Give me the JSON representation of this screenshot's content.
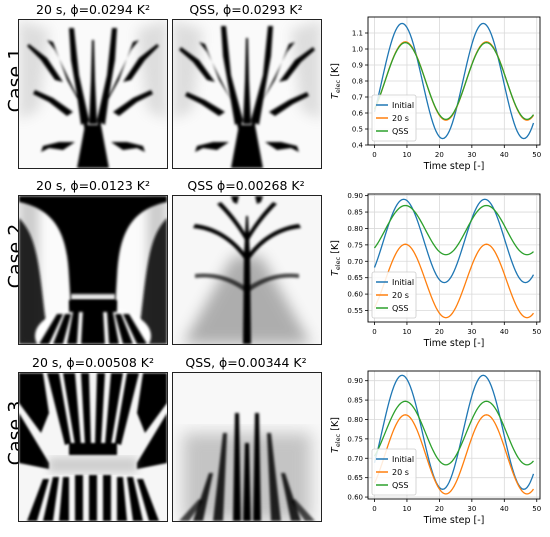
{
  "cases": [
    {
      "label": "Case 1",
      "left_title": "20 s, ϕ=0.0294 K²",
      "right_title": "QSS, ϕ=0.0293 K²"
    },
    {
      "label": "Case 2",
      "left_title": "20 s, ϕ=0.0123 K²",
      "right_title": "QSS ϕ=0.00268 K²"
    },
    {
      "label": "Case 3",
      "left_title": "20 s, ϕ=0.00508 K²",
      "right_title": "QSS, ϕ=0.00344 K²"
    }
  ],
  "chart_data": [
    {
      "type": "line",
      "xlabel": "Time step [-]",
      "ylabel": "T_elec [K]",
      "xlim": [
        -2,
        51
      ],
      "ylim": [
        0.4,
        1.2
      ],
      "xticks": [
        0,
        10,
        20,
        30,
        40,
        50
      ],
      "yticks": [
        0.4,
        0.5,
        0.6,
        0.7,
        0.8,
        0.9,
        1.0,
        1.1
      ],
      "ytick_labels": [
        "0.4",
        "0.5",
        "0.6",
        "0.7",
        "0.8",
        "0.9",
        "1.0",
        "1.1"
      ],
      "grid": true,
      "legend_position": "lower-left",
      "series": [
        {
          "name": "Initial",
          "color": "#1f77b4",
          "mean": 0.8,
          "amp": 0.36,
          "peak": 8.5
        },
        {
          "name": "20 s",
          "color": "#ff7f0e",
          "mean": 0.8,
          "amp": 0.245,
          "peak": 9.5
        },
        {
          "name": "QSS",
          "color": "#2ca02c",
          "mean": 0.8,
          "amp": 0.24,
          "peak": 9.5
        }
      ],
      "x_start": 0,
      "x_end": 49,
      "period": 25
    },
    {
      "type": "line",
      "xlabel": "Time step [-]",
      "ylabel": "T_elec [K]",
      "xlim": [
        -2,
        51
      ],
      "ylim": [
        0.515,
        0.905
      ],
      "xticks": [
        0,
        10,
        20,
        30,
        40,
        50
      ],
      "yticks": [
        0.55,
        0.6,
        0.65,
        0.7,
        0.75,
        0.8,
        0.85,
        0.9
      ],
      "ytick_labels": [
        "0.55",
        "0.60",
        "0.65",
        "0.70",
        "0.75",
        "0.80",
        "0.85",
        "0.90"
      ],
      "grid": true,
      "legend_position": "lower-left",
      "series": [
        {
          "name": "Initial",
          "color": "#1f77b4",
          "mean": 0.762,
          "amp": 0.127,
          "peak": 9
        },
        {
          "name": "20 s",
          "color": "#ff7f0e",
          "mean": 0.64,
          "amp": 0.112,
          "peak": 9.5
        },
        {
          "name": "QSS",
          "color": "#2ca02c",
          "mean": 0.795,
          "amp": 0.075,
          "peak": 9.5
        }
      ],
      "x_start": 0,
      "x_end": 49,
      "period": 25
    },
    {
      "type": "line",
      "xlabel": "Time step [-]",
      "ylabel": "T_elec [K]",
      "xlim": [
        -2,
        51
      ],
      "ylim": [
        0.595,
        0.925
      ],
      "xticks": [
        0,
        10,
        20,
        30,
        40,
        50
      ],
      "yticks": [
        0.6,
        0.65,
        0.7,
        0.75,
        0.8,
        0.85,
        0.9
      ],
      "ytick_labels": [
        "0.60",
        "0.65",
        "0.70",
        "0.75",
        "0.80",
        "0.85",
        "0.90"
      ],
      "grid": true,
      "legend_position": "lower-left",
      "series": [
        {
          "name": "Initial",
          "color": "#1f77b4",
          "mean": 0.767,
          "amp": 0.147,
          "peak": 8.5
        },
        {
          "name": "20 s",
          "color": "#ff7f0e",
          "mean": 0.71,
          "amp": 0.102,
          "peak": 9.5
        },
        {
          "name": "QSS",
          "color": "#2ca02c",
          "mean": 0.765,
          "amp": 0.082,
          "peak": 9.5
        }
      ],
      "x_start": 0,
      "x_end": 49,
      "period": 25
    }
  ]
}
